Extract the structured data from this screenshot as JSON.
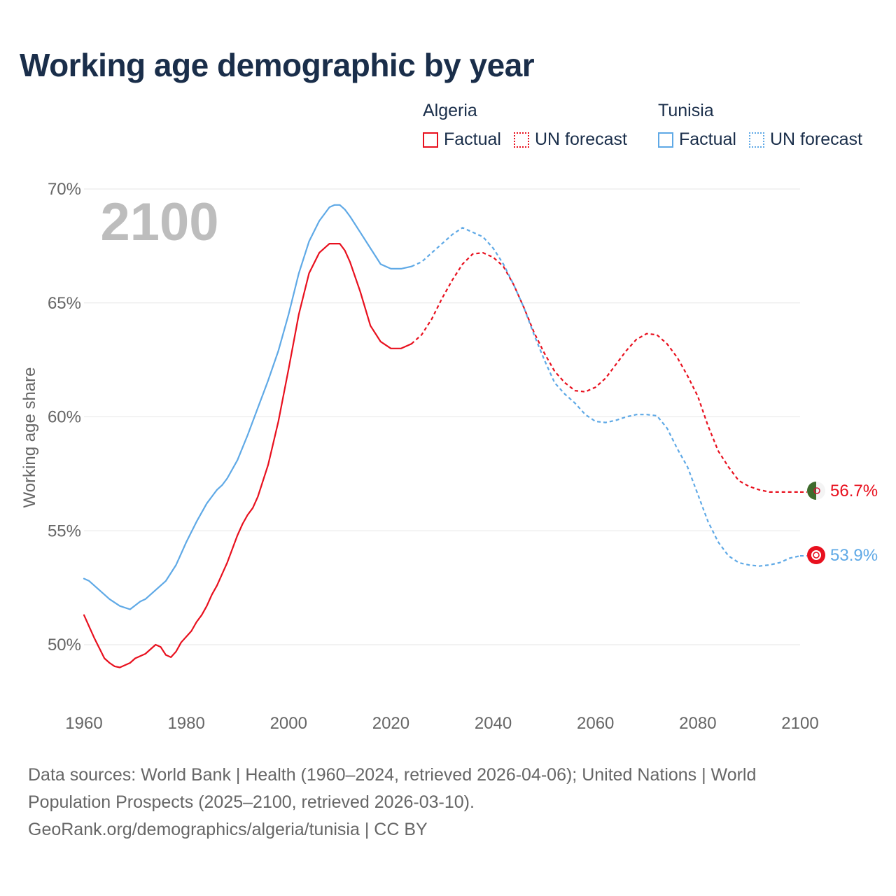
{
  "title": "Working age demographic by year",
  "legend": {
    "algeria": {
      "name": "Algeria",
      "factual": "Factual",
      "forecast": "UN forecast",
      "color": "#e8101e"
    },
    "tunisia": {
      "name": "Tunisia",
      "factual": "Factual",
      "forecast": "UN forecast",
      "color": "#5fa9e6"
    }
  },
  "year_overlay": "2100",
  "end_labels": {
    "algeria": "56.7%",
    "tunisia": "53.9%"
  },
  "footer": {
    "line1": "Data sources: World Bank | Health (1960–2024, retrieved 2026-04-06); United Nations | World",
    "line2": "Population Prospects (2025–2100, retrieved 2026-03-10).",
    "line3": "GeoRank.org/demographics/algeria/tunisia | CC BY"
  },
  "chart_data": {
    "type": "line",
    "title": "Working age demographic by year",
    "xlabel": "",
    "ylabel": "Working age share",
    "xlim": [
      1960,
      2100
    ],
    "ylim": [
      48,
      71
    ],
    "xticks": [
      1960,
      1980,
      2000,
      2020,
      2040,
      2060,
      2080,
      2100
    ],
    "xtick_labels": [
      "1960",
      "1980",
      "2000",
      "2020",
      "2040",
      "2060",
      "2080",
      "2100"
    ],
    "yticks": [
      50,
      55,
      60,
      65,
      70
    ],
    "ytick_labels": [
      "50%",
      "55%",
      "60%",
      "65%",
      "70%"
    ],
    "grid": true,
    "series": [
      {
        "name": "Algeria Factual",
        "country": "Algeria",
        "kind": "factual",
        "color": "#e8101e",
        "x": [
          1960,
          1962,
          1964,
          1965,
          1966,
          1967,
          1969,
          1970,
          1972,
          1974,
          1975,
          1976,
          1977,
          1978,
          1979,
          1981,
          1982,
          1983,
          1984,
          1985,
          1986,
          1987,
          1988,
          1989,
          1990,
          1991,
          1992,
          1993,
          1994,
          1996,
          1998,
          2000,
          2002,
          2004,
          2006,
          2008,
          2009,
          2010,
          2011,
          2012,
          2014,
          2016,
          2018,
          2020,
          2022,
          2024
        ],
        "y": [
          51.3,
          50.3,
          49.4,
          49.2,
          49.05,
          49.0,
          49.2,
          49.4,
          49.6,
          50.0,
          49.9,
          49.55,
          49.45,
          49.7,
          50.1,
          50.6,
          51.0,
          51.3,
          51.7,
          52.2,
          52.6,
          53.1,
          53.6,
          54.2,
          54.8,
          55.3,
          55.7,
          56.0,
          56.5,
          57.9,
          59.8,
          62.1,
          64.5,
          66.3,
          67.2,
          67.6,
          67.6,
          67.6,
          67.3,
          66.8,
          65.5,
          64.0,
          63.3,
          63.0,
          63.0,
          63.2
        ]
      },
      {
        "name": "Algeria UN forecast",
        "country": "Algeria",
        "kind": "forecast",
        "color": "#e8101e",
        "x": [
          2024,
          2026,
          2028,
          2030,
          2032,
          2034,
          2036,
          2038,
          2040,
          2042,
          2044,
          2046,
          2048,
          2050,
          2052,
          2054,
          2056,
          2058,
          2060,
          2062,
          2064,
          2066,
          2068,
          2070,
          2072,
          2074,
          2076,
          2078,
          2080,
          2082,
          2084,
          2086,
          2088,
          2090,
          2092,
          2094,
          2096,
          2098,
          2100
        ],
        "y": [
          63.2,
          63.6,
          64.3,
          65.2,
          66.0,
          66.7,
          67.15,
          67.2,
          67.0,
          66.6,
          65.8,
          64.8,
          63.7,
          62.8,
          62.0,
          61.5,
          61.15,
          61.1,
          61.3,
          61.7,
          62.3,
          62.9,
          63.4,
          63.65,
          63.6,
          63.2,
          62.6,
          61.8,
          60.9,
          59.6,
          58.5,
          57.8,
          57.2,
          56.95,
          56.8,
          56.7,
          56.7,
          56.7,
          56.7
        ]
      },
      {
        "name": "Tunisia Factual",
        "country": "Tunisia",
        "kind": "factual",
        "color": "#5fa9e6",
        "x": [
          1960,
          1961,
          1963,
          1965,
          1967,
          1969,
          1971,
          1972,
          1974,
          1976,
          1978,
          1980,
          1982,
          1984,
          1985,
          1986,
          1987,
          1988,
          1990,
          1992,
          1994,
          1996,
          1998,
          2000,
          2002,
          2004,
          2006,
          2008,
          2009,
          2010,
          2011,
          2012,
          2014,
          2016,
          2018,
          2020,
          2022,
          2024
        ],
        "y": [
          52.9,
          52.8,
          52.4,
          52.0,
          51.7,
          51.55,
          51.9,
          52.0,
          52.4,
          52.8,
          53.5,
          54.5,
          55.4,
          56.2,
          56.5,
          56.8,
          57.0,
          57.3,
          58.1,
          59.2,
          60.4,
          61.6,
          62.9,
          64.5,
          66.3,
          67.7,
          68.6,
          69.2,
          69.3,
          69.3,
          69.1,
          68.8,
          68.1,
          67.4,
          66.7,
          66.5,
          66.5,
          66.6
        ]
      },
      {
        "name": "Tunisia UN forecast",
        "country": "Tunisia",
        "kind": "forecast",
        "color": "#5fa9e6",
        "x": [
          2024,
          2026,
          2028,
          2030,
          2032,
          2034,
          2036,
          2038,
          2040,
          2042,
          2044,
          2046,
          2048,
          2050,
          2052,
          2054,
          2056,
          2058,
          2060,
          2062,
          2064,
          2066,
          2068,
          2070,
          2072,
          2074,
          2076,
          2078,
          2080,
          2082,
          2084,
          2086,
          2088,
          2090,
          2092,
          2094,
          2096,
          2098,
          2100
        ],
        "y": [
          66.6,
          66.8,
          67.2,
          67.6,
          68.0,
          68.3,
          68.1,
          67.9,
          67.4,
          66.7,
          65.8,
          64.8,
          63.6,
          62.5,
          61.5,
          61.0,
          60.6,
          60.1,
          59.8,
          59.75,
          59.85,
          60.0,
          60.1,
          60.1,
          60.05,
          59.5,
          58.6,
          57.8,
          56.6,
          55.4,
          54.5,
          53.9,
          53.6,
          53.5,
          53.45,
          53.5,
          53.6,
          53.8,
          53.9
        ]
      }
    ]
  }
}
